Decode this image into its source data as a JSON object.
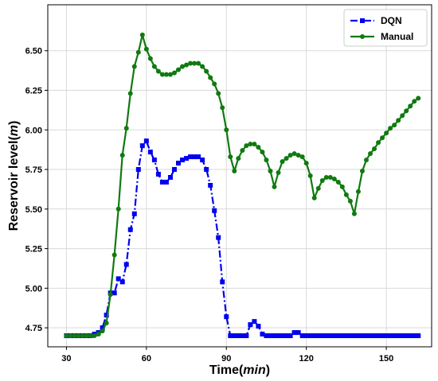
{
  "chart_data": {
    "type": "line",
    "title": "",
    "xlabel_main": "Time(",
    "xlabel_unit": "min",
    "xlabel_close": ")",
    "ylabel_main": "Reservoir level(",
    "ylabel_unit": "m",
    "ylabel_close": ")",
    "xlim": [
      23,
      167
    ],
    "ylim": [
      4.63,
      6.79
    ],
    "xticks": [
      30,
      60,
      90,
      120,
      150
    ],
    "xtick_labels": [
      "30",
      "60",
      "90",
      "120",
      "150"
    ],
    "yticks": [
      4.75,
      5.0,
      5.25,
      5.5,
      5.75,
      6.0,
      6.25,
      6.5
    ],
    "ytick_labels": [
      "4.75",
      "5.00",
      "5.25",
      "5.50",
      "5.75",
      "6.00",
      "6.25",
      "6.50"
    ],
    "grid": true,
    "legend_position": "top-right",
    "series": [
      {
        "name": "DQN",
        "color": "#0000ee",
        "line_style": "dashdot",
        "marker": "square",
        "points": [
          [
            30,
            4.7
          ],
          [
            31.5,
            4.7
          ],
          [
            33,
            4.7
          ],
          [
            34.5,
            4.7
          ],
          [
            36,
            4.7
          ],
          [
            37.5,
            4.7
          ],
          [
            39,
            4.7
          ],
          [
            40.5,
            4.71
          ],
          [
            42,
            4.72
          ],
          [
            43.5,
            4.75
          ],
          [
            45,
            4.83
          ],
          [
            46.5,
            4.97
          ],
          [
            48,
            4.97
          ],
          [
            49.5,
            5.06
          ],
          [
            51,
            5.04
          ],
          [
            52.5,
            5.15
          ],
          [
            54,
            5.37
          ],
          [
            55.5,
            5.47
          ],
          [
            57,
            5.75
          ],
          [
            58.5,
            5.9
          ],
          [
            60,
            5.93
          ],
          [
            61.5,
            5.86
          ],
          [
            63,
            5.81
          ],
          [
            64.5,
            5.72
          ],
          [
            66,
            5.67
          ],
          [
            67.5,
            5.67
          ],
          [
            69,
            5.7
          ],
          [
            70.5,
            5.75
          ],
          [
            72,
            5.79
          ],
          [
            73.5,
            5.81
          ],
          [
            75,
            5.82
          ],
          [
            76.5,
            5.83
          ],
          [
            78,
            5.83
          ],
          [
            79.5,
            5.83
          ],
          [
            81,
            5.81
          ],
          [
            82.5,
            5.75
          ],
          [
            84,
            5.65
          ],
          [
            85.5,
            5.49
          ],
          [
            87,
            5.32
          ],
          [
            88.5,
            5.04
          ],
          [
            90,
            4.82
          ],
          [
            91.5,
            4.7
          ],
          [
            93,
            4.7
          ],
          [
            94.5,
            4.7
          ],
          [
            96,
            4.7
          ],
          [
            97.5,
            4.7
          ],
          [
            99,
            4.77
          ],
          [
            100.5,
            4.79
          ],
          [
            102,
            4.76
          ],
          [
            103.5,
            4.71
          ],
          [
            105,
            4.7
          ],
          [
            106.5,
            4.7
          ],
          [
            108,
            4.7
          ],
          [
            109.5,
            4.7
          ],
          [
            111,
            4.7
          ],
          [
            112.5,
            4.7
          ],
          [
            114,
            4.7
          ],
          [
            115.5,
            4.72
          ],
          [
            117,
            4.72
          ],
          [
            118.5,
            4.7
          ],
          [
            120,
            4.7
          ],
          [
            121.5,
            4.7
          ],
          [
            123,
            4.7
          ],
          [
            124.5,
            4.7
          ],
          [
            126,
            4.7
          ],
          [
            127.5,
            4.7
          ],
          [
            129,
            4.7
          ],
          [
            130.5,
            4.7
          ],
          [
            132,
            4.7
          ],
          [
            133.5,
            4.7
          ],
          [
            135,
            4.7
          ],
          [
            136.5,
            4.7
          ],
          [
            138,
            4.7
          ],
          [
            139.5,
            4.7
          ],
          [
            141,
            4.7
          ],
          [
            142.5,
            4.7
          ],
          [
            144,
            4.7
          ],
          [
            145.5,
            4.7
          ],
          [
            147,
            4.7
          ],
          [
            148.5,
            4.7
          ],
          [
            150,
            4.7
          ],
          [
            151.5,
            4.7
          ],
          [
            153,
            4.7
          ],
          [
            154.5,
            4.7
          ],
          [
            156,
            4.7
          ],
          [
            157.5,
            4.7
          ],
          [
            159,
            4.7
          ],
          [
            160.5,
            4.7
          ],
          [
            162,
            4.7
          ]
        ]
      },
      {
        "name": "Manual",
        "color": "#107a10",
        "line_style": "solid",
        "marker": "circle",
        "points": [
          [
            30,
            4.7
          ],
          [
            31.5,
            4.7
          ],
          [
            33,
            4.7
          ],
          [
            34.5,
            4.7
          ],
          [
            36,
            4.7
          ],
          [
            37.5,
            4.7
          ],
          [
            39,
            4.7
          ],
          [
            40.5,
            4.7
          ],
          [
            42,
            4.71
          ],
          [
            43.5,
            4.73
          ],
          [
            45,
            4.78
          ],
          [
            46.5,
            4.96
          ],
          [
            48,
            5.21
          ],
          [
            49.5,
            5.5
          ],
          [
            51,
            5.84
          ],
          [
            52.5,
            6.01
          ],
          [
            54,
            6.23
          ],
          [
            55.5,
            6.4
          ],
          [
            57,
            6.49
          ],
          [
            58.5,
            6.6
          ],
          [
            60,
            6.51
          ],
          [
            61.5,
            6.45
          ],
          [
            63,
            6.4
          ],
          [
            64.5,
            6.37
          ],
          [
            66,
            6.35
          ],
          [
            67.5,
            6.35
          ],
          [
            69,
            6.35
          ],
          [
            70.5,
            6.36
          ],
          [
            72,
            6.38
          ],
          [
            73.5,
            6.4
          ],
          [
            75,
            6.41
          ],
          [
            76.5,
            6.42
          ],
          [
            78,
            6.42
          ],
          [
            79.5,
            6.42
          ],
          [
            81,
            6.4
          ],
          [
            82.5,
            6.37
          ],
          [
            84,
            6.33
          ],
          [
            85.5,
            6.29
          ],
          [
            87,
            6.23
          ],
          [
            88.5,
            6.14
          ],
          [
            90,
            6.0
          ],
          [
            91.5,
            5.83
          ],
          [
            93,
            5.74
          ],
          [
            94.5,
            5.82
          ],
          [
            96,
            5.87
          ],
          [
            97.5,
            5.9
          ],
          [
            99,
            5.91
          ],
          [
            100.5,
            5.91
          ],
          [
            102,
            5.89
          ],
          [
            103.5,
            5.86
          ],
          [
            105,
            5.81
          ],
          [
            106.5,
            5.74
          ],
          [
            108,
            5.64
          ],
          [
            109.5,
            5.73
          ],
          [
            111,
            5.8
          ],
          [
            112.5,
            5.82
          ],
          [
            114,
            5.84
          ],
          [
            115.5,
            5.85
          ],
          [
            117,
            5.84
          ],
          [
            118.5,
            5.83
          ],
          [
            120,
            5.79
          ],
          [
            121.5,
            5.71
          ],
          [
            123,
            5.57
          ],
          [
            124.5,
            5.63
          ],
          [
            126,
            5.68
          ],
          [
            127.5,
            5.7
          ],
          [
            129,
            5.7
          ],
          [
            130.5,
            5.69
          ],
          [
            132,
            5.67
          ],
          [
            133.5,
            5.64
          ],
          [
            135,
            5.59
          ],
          [
            136.5,
            5.55
          ],
          [
            138,
            5.47
          ],
          [
            139.5,
            5.61
          ],
          [
            141,
            5.74
          ],
          [
            142.5,
            5.81
          ],
          [
            144,
            5.85
          ],
          [
            145.5,
            5.88
          ],
          [
            147,
            5.92
          ],
          [
            148.5,
            5.95
          ],
          [
            150,
            5.98
          ],
          [
            151.5,
            6.01
          ],
          [
            153,
            6.03
          ],
          [
            154.5,
            6.06
          ],
          [
            156,
            6.09
          ],
          [
            157.5,
            6.12
          ],
          [
            159,
            6.15
          ],
          [
            160.5,
            6.18
          ],
          [
            162,
            6.2
          ]
        ]
      }
    ]
  }
}
